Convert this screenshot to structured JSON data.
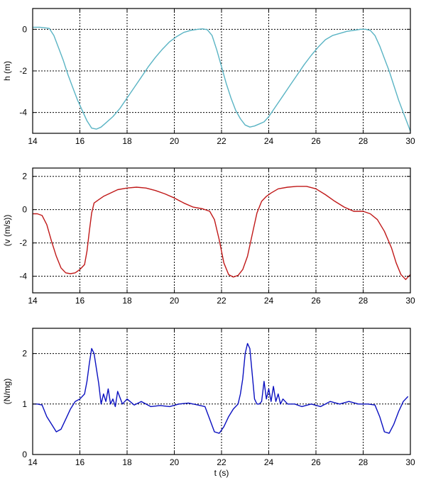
{
  "chart_data": [
    {
      "type": "line",
      "ylabel": "h (m)",
      "xlim": [
        14,
        30
      ],
      "ylim": [
        -5,
        1
      ],
      "xticks": [
        14,
        16,
        18,
        20,
        22,
        24,
        26,
        28,
        30
      ],
      "yticks": [
        0,
        -2,
        -4
      ],
      "grid": true,
      "series": [
        {
          "color": "#5ab4c4",
          "x": [
            14.0,
            14.3,
            14.7,
            14.9,
            15.1,
            15.3,
            15.5,
            15.7,
            15.9,
            16.1,
            16.3,
            16.5,
            16.7,
            16.9,
            17.1,
            17.4,
            17.7,
            18.0,
            18.3,
            18.6,
            18.9,
            19.2,
            19.5,
            19.8,
            20.1,
            20.4,
            20.7,
            21.0,
            21.2,
            21.4,
            21.6,
            21.8,
            22.0,
            22.2,
            22.4,
            22.6,
            22.8,
            23.0,
            23.2,
            23.4,
            23.6,
            23.8,
            24.0,
            24.3,
            24.6,
            24.9,
            25.2,
            25.5,
            25.8,
            26.1,
            26.4,
            26.7,
            27.0,
            27.3,
            27.6,
            27.9,
            28.1,
            28.3,
            28.5,
            28.7,
            28.9,
            29.1,
            29.3,
            29.5,
            29.7,
            29.9,
            30.0
          ],
          "y": [
            0.1,
            0.1,
            0.05,
            -0.3,
            -0.9,
            -1.5,
            -2.2,
            -2.8,
            -3.4,
            -3.9,
            -4.4,
            -4.75,
            -4.8,
            -4.7,
            -4.5,
            -4.2,
            -3.8,
            -3.3,
            -2.8,
            -2.3,
            -1.8,
            -1.35,
            -0.95,
            -0.6,
            -0.35,
            -0.15,
            -0.05,
            0.0,
            0.02,
            -0.02,
            -0.3,
            -1.0,
            -1.8,
            -2.6,
            -3.3,
            -3.9,
            -4.3,
            -4.6,
            -4.7,
            -4.65,
            -4.55,
            -4.45,
            -4.2,
            -3.7,
            -3.2,
            -2.7,
            -2.2,
            -1.7,
            -1.25,
            -0.85,
            -0.5,
            -0.3,
            -0.2,
            -0.1,
            -0.05,
            0.0,
            0.0,
            -0.05,
            -0.3,
            -0.8,
            -1.4,
            -2.0,
            -2.7,
            -3.4,
            -4.0,
            -4.6,
            -4.9
          ]
        }
      ]
    },
    {
      "type": "line",
      "ylabel": "(v (m/s))",
      "xlim": [
        14,
        30
      ],
      "ylim": [
        -5,
        2.5
      ],
      "xticks": [
        14,
        16,
        18,
        20,
        22,
        24,
        26,
        28,
        30
      ],
      "yticks": [
        2,
        0,
        -2,
        -4
      ],
      "grid": true,
      "series": [
        {
          "color": "#c01818",
          "x": [
            14.0,
            14.2,
            14.4,
            14.6,
            14.8,
            15.0,
            15.2,
            15.4,
            15.6,
            15.8,
            16.0,
            16.2,
            16.3,
            16.4,
            16.5,
            16.6,
            16.8,
            17.0,
            17.3,
            17.6,
            18.0,
            18.4,
            18.8,
            19.2,
            19.6,
            20.0,
            20.4,
            20.8,
            21.2,
            21.5,
            21.7,
            21.9,
            22.1,
            22.3,
            22.5,
            22.7,
            22.9,
            23.1,
            23.3,
            23.5,
            23.7,
            23.9,
            24.1,
            24.4,
            24.8,
            25.2,
            25.6,
            26.0,
            26.4,
            26.8,
            27.2,
            27.6,
            28.0,
            28.3,
            28.6,
            28.9,
            29.2,
            29.4,
            29.6,
            29.8,
            30.0
          ],
          "y": [
            -0.25,
            -0.25,
            -0.35,
            -0.9,
            -1.9,
            -2.8,
            -3.5,
            -3.8,
            -3.85,
            -3.8,
            -3.6,
            -3.3,
            -2.5,
            -1.3,
            -0.2,
            0.4,
            0.6,
            0.8,
            1.0,
            1.2,
            1.3,
            1.35,
            1.3,
            1.15,
            0.95,
            0.7,
            0.4,
            0.15,
            0.05,
            -0.1,
            -0.6,
            -1.8,
            -3.2,
            -3.9,
            -4.05,
            -3.95,
            -3.6,
            -2.8,
            -1.5,
            -0.2,
            0.5,
            0.8,
            1.0,
            1.25,
            1.35,
            1.4,
            1.4,
            1.25,
            0.9,
            0.5,
            0.15,
            -0.1,
            -0.1,
            -0.25,
            -0.6,
            -1.3,
            -2.3,
            -3.2,
            -3.9,
            -4.2,
            -3.9
          ]
        }
      ]
    },
    {
      "type": "line",
      "xlabel": "t (s)",
      "ylabel": "(N/mg)",
      "xlim": [
        14,
        30
      ],
      "ylim": [
        0,
        2.5
      ],
      "xticks": [
        14,
        16,
        18,
        20,
        22,
        24,
        26,
        28,
        30
      ],
      "yticks": [
        2,
        1,
        0
      ],
      "grid": true,
      "series": [
        {
          "color": "#0a10c0",
          "x": [
            14.0,
            14.2,
            14.4,
            14.6,
            14.8,
            15.0,
            15.2,
            15.4,
            15.6,
            15.8,
            16.0,
            16.2,
            16.3,
            16.4,
            16.5,
            16.6,
            16.7,
            16.8,
            16.9,
            17.0,
            17.1,
            17.2,
            17.3,
            17.4,
            17.5,
            17.6,
            17.8,
            18.0,
            18.3,
            18.6,
            19.0,
            19.4,
            19.8,
            20.2,
            20.6,
            21.0,
            21.3,
            21.5,
            21.7,
            21.9,
            22.1,
            22.3,
            22.5,
            22.7,
            22.8,
            22.9,
            23.0,
            23.1,
            23.2,
            23.3,
            23.4,
            23.5,
            23.6,
            23.7,
            23.8,
            23.9,
            24.0,
            24.1,
            24.2,
            24.3,
            24.4,
            24.5,
            24.6,
            24.8,
            25.1,
            25.4,
            25.8,
            26.2,
            26.6,
            27.0,
            27.4,
            27.8,
            28.2,
            28.5,
            28.7,
            28.9,
            29.1,
            29.3,
            29.5,
            29.7,
            29.9
          ],
          "y": [
            1.0,
            1.0,
            0.98,
            0.75,
            0.6,
            0.45,
            0.5,
            0.7,
            0.9,
            1.05,
            1.1,
            1.2,
            1.45,
            1.8,
            2.1,
            2.0,
            1.7,
            1.4,
            1.0,
            1.2,
            1.05,
            1.3,
            1.0,
            1.1,
            0.95,
            1.25,
            1.0,
            1.1,
            0.98,
            1.05,
            0.95,
            0.97,
            0.95,
            1.0,
            1.02,
            0.98,
            0.95,
            0.7,
            0.45,
            0.42,
            0.55,
            0.75,
            0.9,
            1.0,
            1.2,
            1.5,
            2.0,
            2.2,
            2.1,
            1.6,
            1.1,
            1.0,
            1.0,
            1.05,
            1.45,
            1.1,
            1.3,
            1.05,
            1.35,
            1.05,
            1.2,
            1.0,
            1.1,
            1.0,
            1.0,
            0.95,
            1.0,
            0.95,
            1.05,
            1.0,
            1.05,
            1.0,
            1.0,
            0.98,
            0.75,
            0.45,
            0.42,
            0.6,
            0.85,
            1.05,
            1.15
          ]
        }
      ]
    }
  ]
}
